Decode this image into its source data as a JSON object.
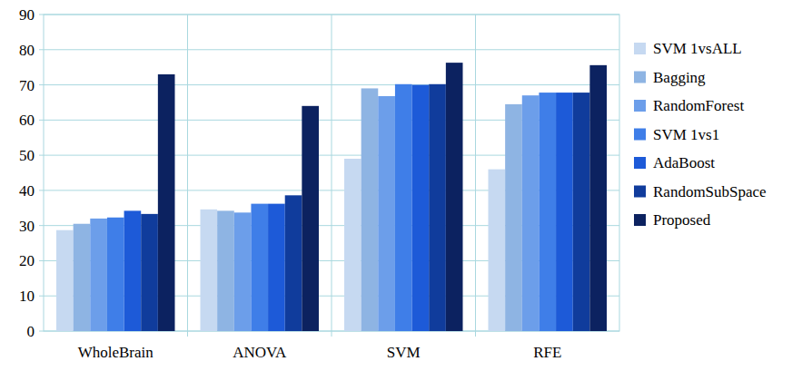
{
  "chart_data": {
    "type": "bar",
    "categories": [
      "WholeBrain",
      "ANOVA",
      "SVM",
      "RFE"
    ],
    "series": [
      {
        "name": "SVM 1vsALL",
        "color": "#c6d9f1",
        "values": [
          28.7,
          34.6,
          49,
          46
        ]
      },
      {
        "name": "Bagging",
        "color": "#8eb4e3",
        "values": [
          30.5,
          34.2,
          69,
          64.5
        ]
      },
      {
        "name": "RandomForest",
        "color": "#6c9eea",
        "values": [
          32,
          33.7,
          66.8,
          67
        ]
      },
      {
        "name": "SVM 1vs1",
        "color": "#3f7ee8",
        "values": [
          32.3,
          36.2,
          70.2,
          67.8
        ]
      },
      {
        "name": "AdaBoost",
        "color": "#1d5ad8",
        "values": [
          34.2,
          36.2,
          70,
          67.8
        ]
      },
      {
        "name": "RandomSubSpace",
        "color": "#103c9c",
        "values": [
          33.3,
          38.6,
          70.2,
          67.8
        ]
      },
      {
        "name": "Proposed",
        "color": "#0c2260",
        "values": [
          73,
          64,
          76.3,
          75.6
        ]
      }
    ],
    "ylim": [
      0,
      90
    ],
    "yticks": [
      0,
      10,
      20,
      30,
      40,
      50,
      60,
      70,
      80,
      90
    ],
    "grid": true,
    "legend": "right"
  }
}
